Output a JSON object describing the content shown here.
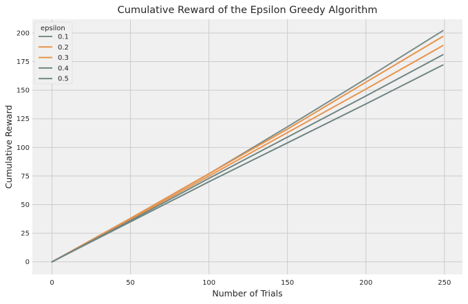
{
  "chart_data": {
    "type": "line",
    "title": "Cumulative Reward of the Epsilon Greedy Algorithm",
    "xlabel": "Number of Trials",
    "ylabel": "Cumulative Reward",
    "xlim": [
      -12.5,
      261.5
    ],
    "ylim": [
      -11,
      212
    ],
    "xticks": [
      0,
      50,
      100,
      150,
      200,
      250
    ],
    "yticks": [
      0,
      25,
      50,
      75,
      100,
      125,
      150,
      175,
      200
    ],
    "grid": true,
    "legend": {
      "title": "epsilon",
      "position": "top-left"
    },
    "series": [
      {
        "name": "0.1",
        "color": "#7a8c88",
        "x": [
          0,
          50,
          100,
          150,
          200,
          249
        ],
        "values": [
          0,
          38,
          77,
          118,
          160,
          202
        ]
      },
      {
        "name": "0.2",
        "color": "#e8934a",
        "x": [
          0,
          50,
          100,
          150,
          200,
          249
        ],
        "values": [
          0,
          38,
          77,
          116,
          157,
          197
        ]
      },
      {
        "name": "0.3",
        "color": "#e8934a",
        "x": [
          0,
          50,
          100,
          150,
          200,
          249
        ],
        "values": [
          0,
          37,
          75,
          113,
          151,
          189
        ]
      },
      {
        "name": "0.4",
        "color": "#6e8582",
        "x": [
          0,
          50,
          100,
          150,
          200,
          249
        ],
        "values": [
          0,
          36,
          73,
          109,
          145,
          181
        ]
      },
      {
        "name": "0.5",
        "color": "#6e8582",
        "x": [
          0,
          50,
          100,
          150,
          200,
          249
        ],
        "values": [
          0,
          35,
          70,
          104,
          138,
          172
        ]
      }
    ]
  }
}
